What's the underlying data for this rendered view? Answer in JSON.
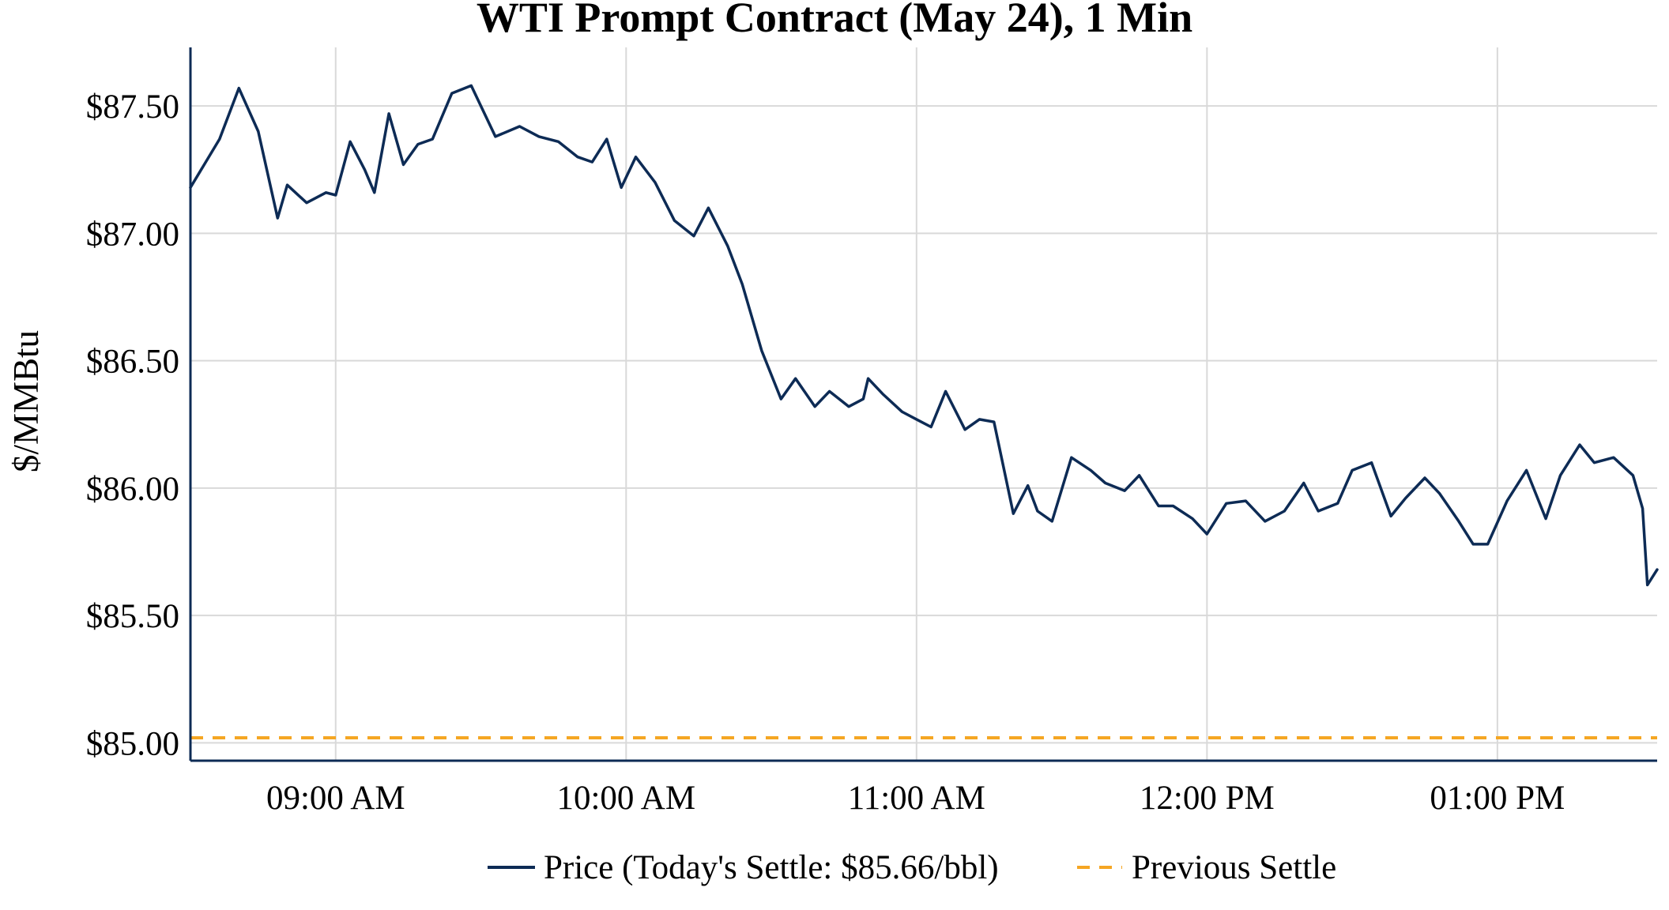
{
  "chart_data": {
    "type": "line",
    "title": "WTI Prompt Contract (May 24), 1 Min",
    "ylabel": "$/MMBtu",
    "xlabel": "",
    "x_range": [
      "08:30",
      "13:33"
    ],
    "ylim": [
      84.93,
      87.73
    ],
    "x_ticks": [
      {
        "time": "09:00",
        "label": "09:00 AM"
      },
      {
        "time": "10:00",
        "label": "10:00 AM"
      },
      {
        "time": "11:00",
        "label": "11:00 AM"
      },
      {
        "time": "12:00",
        "label": "12:00 PM"
      },
      {
        "time": "13:00",
        "label": "01:00 PM"
      }
    ],
    "y_ticks": [
      {
        "value": 85.0,
        "label": "$85.00"
      },
      {
        "value": 85.5,
        "label": "$85.50"
      },
      {
        "value": 86.0,
        "label": "$86.00"
      },
      {
        "value": 86.5,
        "label": "$86.50"
      },
      {
        "value": 87.0,
        "label": "$87.00"
      },
      {
        "value": 87.5,
        "label": "$87.50"
      }
    ],
    "grid": true,
    "legend_position": "bottom",
    "series": [
      {
        "name": "Price (Today's Settle: $85.66/bbl)",
        "color": "#0d2b55",
        "style": "solid",
        "x": [
          "08:30",
          "08:36",
          "08:40",
          "08:44",
          "08:48",
          "08:50",
          "08:54",
          "08:58",
          "09:00",
          "09:03",
          "09:06",
          "09:08",
          "09:11",
          "09:14",
          "09:17",
          "09:20",
          "09:24",
          "09:28",
          "09:33",
          "09:38",
          "09:42",
          "09:46",
          "09:50",
          "09:53",
          "09:56",
          "09:59",
          "10:02",
          "10:06",
          "10:10",
          "10:14",
          "10:17",
          "10:21",
          "10:24",
          "10:28",
          "10:32",
          "10:35",
          "10:39",
          "10:42",
          "10:46",
          "10:49",
          "10:50",
          "10:53",
          "10:57",
          "11:00",
          "11:03",
          "11:06",
          "11:10",
          "11:13",
          "11:16",
          "11:20",
          "11:23",
          "11:25",
          "11:28",
          "11:32",
          "11:36",
          "11:39",
          "11:43",
          "11:46",
          "11:50",
          "11:53",
          "11:57",
          "12:00",
          "12:04",
          "12:08",
          "12:12",
          "12:16",
          "12:20",
          "12:23",
          "12:27",
          "12:30",
          "12:34",
          "12:38",
          "12:41",
          "12:45",
          "12:48",
          "12:52",
          "12:55",
          "12:58",
          "13:02",
          "13:06",
          "13:10",
          "13:13",
          "13:17",
          "13:20",
          "13:24",
          "13:28",
          "13:30",
          "13:31",
          "13:33"
        ],
        "values": [
          87.18,
          87.37,
          87.57,
          87.4,
          87.06,
          87.19,
          87.12,
          87.16,
          87.15,
          87.36,
          87.25,
          87.16,
          87.47,
          87.27,
          87.35,
          87.37,
          87.55,
          87.58,
          87.38,
          87.42,
          87.38,
          87.36,
          87.3,
          87.28,
          87.37,
          87.18,
          87.3,
          87.2,
          87.05,
          86.99,
          87.1,
          86.95,
          86.8,
          86.54,
          86.35,
          86.43,
          86.32,
          86.38,
          86.32,
          86.35,
          86.43,
          86.37,
          86.3,
          86.27,
          86.24,
          86.38,
          86.23,
          86.27,
          86.26,
          85.9,
          86.01,
          85.91,
          85.87,
          86.12,
          86.07,
          86.02,
          85.99,
          86.05,
          85.93,
          85.93,
          85.88,
          85.82,
          85.94,
          85.95,
          85.87,
          85.91,
          86.02,
          85.91,
          85.94,
          86.07,
          86.1,
          85.89,
          85.96,
          86.04,
          85.98,
          85.87,
          85.78,
          85.78,
          85.95,
          86.07,
          85.88,
          86.05,
          86.17,
          86.1,
          86.12,
          86.05,
          85.92,
          85.62,
          85.68
        ]
      },
      {
        "name": "Previous Settle",
        "color": "#f5a623",
        "style": "dashed",
        "value": 85.02
      }
    ]
  }
}
